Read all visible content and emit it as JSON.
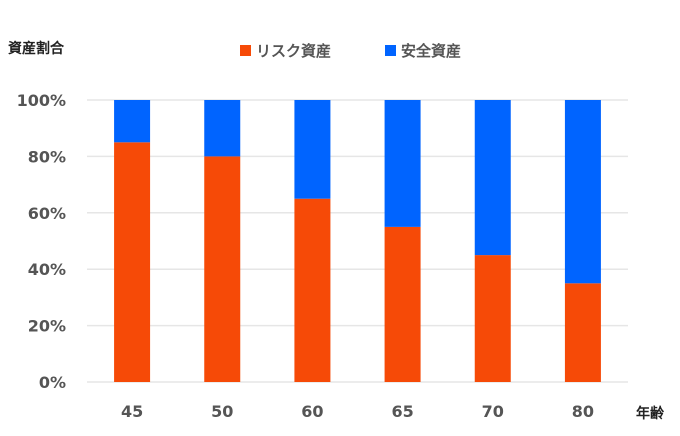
{
  "chart_data": {
    "type": "bar",
    "stacked": true,
    "ylabel": "資産割合",
    "xlabel": "年齢",
    "categories": [
      "45",
      "50",
      "60",
      "65",
      "70",
      "80"
    ],
    "series": [
      {
        "name": "リスク資産",
        "color": "#F64A07",
        "values": [
          85,
          80,
          65,
          55,
          45,
          35
        ]
      },
      {
        "name": "安全資産",
        "color": "#0064FF",
        "values": [
          15,
          20,
          35,
          45,
          55,
          65
        ]
      }
    ],
    "yticks": [
      "0%",
      "20%",
      "40%",
      "60%",
      "80%",
      "100%"
    ],
    "ylim": [
      0,
      100
    ],
    "grid": true,
    "legend": "top-center"
  }
}
